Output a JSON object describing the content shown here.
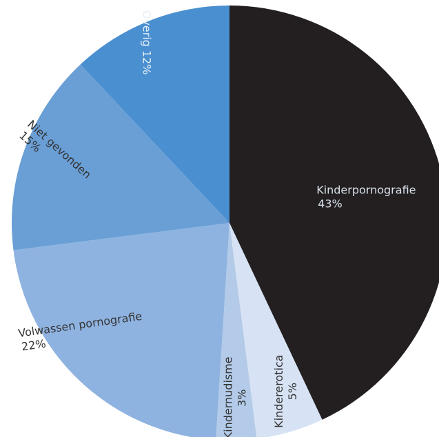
{
  "chart_data": {
    "type": "pie",
    "slices": [
      {
        "label": "Kinderpornografie",
        "value": 43,
        "display": "43%",
        "color": "#231f20",
        "text_color": "#d9e2ec"
      },
      {
        "label": "Kindererotica",
        "value": 5,
        "display": "5%",
        "color": "#d7e3f4",
        "text_color": "#333333"
      },
      {
        "label": "Kindernudisme",
        "value": 3,
        "display": "3%",
        "color": "#b3cbe8",
        "text_color": "#333333"
      },
      {
        "label": "Volwassen pornografie",
        "value": 22,
        "display": "22%",
        "color": "#8fb3e0",
        "text_color": "#333333"
      },
      {
        "label": "Niet gevonden",
        "value": 15,
        "display": "15%",
        "color": "#6a9fd6",
        "text_color": "#333333"
      },
      {
        "label": "Overig",
        "value": 12,
        "display": "12%",
        "color": "#4a8fd0",
        "text_color": "#e8f0f8"
      }
    ],
    "start_angle_deg": 0,
    "direction": "clockwise"
  }
}
